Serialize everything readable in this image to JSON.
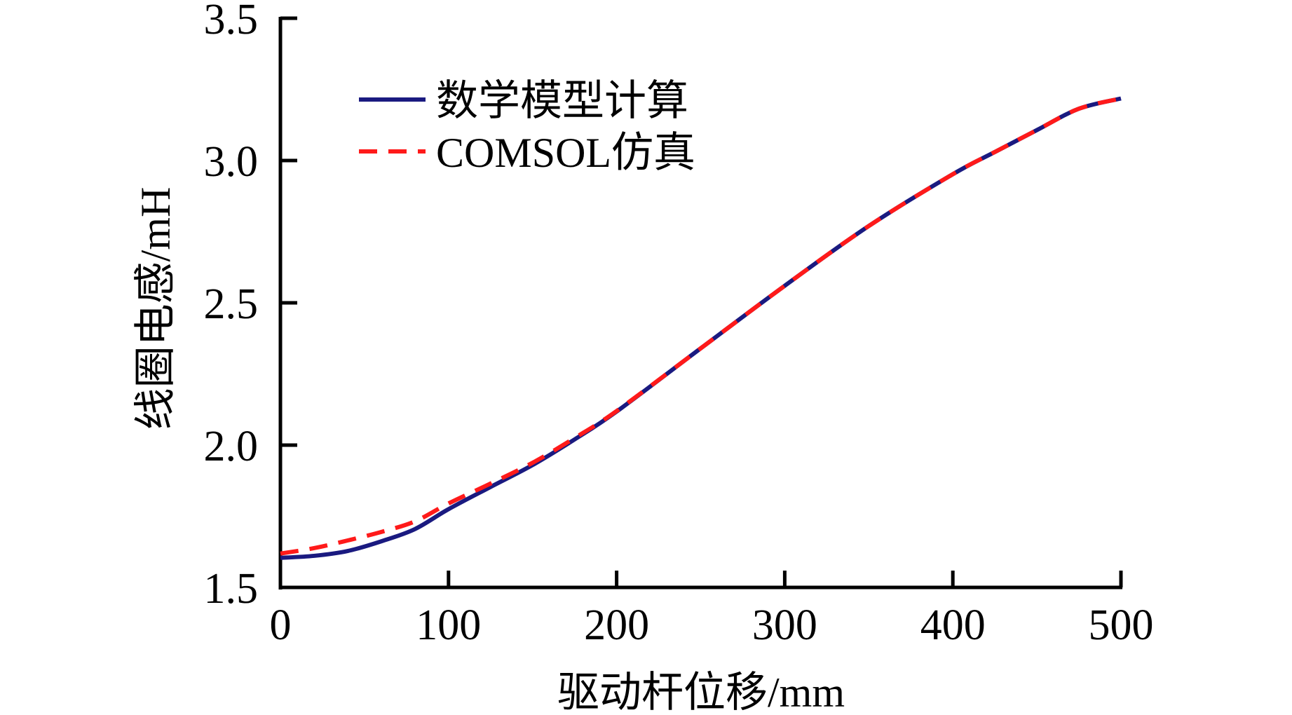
{
  "chart_data": {
    "type": "line",
    "title": "",
    "xlabel": "驱动杆位移/mm",
    "ylabel": "线圈电感/mH",
    "xlim": [
      0,
      500
    ],
    "ylim": [
      1.5,
      3.5
    ],
    "xticks": [
      0,
      100,
      200,
      300,
      400,
      500
    ],
    "xtick_labels": [
      "0",
      "100",
      "200",
      "300",
      "400",
      "500"
    ],
    "yticks": [
      1.5,
      2.0,
      2.5,
      3.0,
      3.5
    ],
    "ytick_labels": [
      "1.5",
      "2.0",
      "2.5",
      "3.0",
      "3.5"
    ],
    "grid": false,
    "legend_position": "top-left",
    "series": [
      {
        "name": "数学模型计算",
        "color": "#1a1a80",
        "style": "solid",
        "x": [
          0,
          20,
          40,
          60,
          80,
          100,
          125,
          150,
          175,
          200,
          250,
          300,
          350,
          400,
          425,
          450,
          475,
          500
        ],
        "y": [
          1.604,
          1.611,
          1.628,
          1.662,
          1.705,
          1.775,
          1.853,
          1.93,
          2.02,
          2.118,
          2.34,
          2.56,
          2.77,
          2.952,
          3.03,
          3.107,
          3.182,
          3.218
        ]
      },
      {
        "name": "COMSOL仿真",
        "color": "#ff1a1a",
        "style": "dashed",
        "x": [
          0,
          20,
          40,
          60,
          80,
          100,
          125,
          150,
          175,
          200,
          250,
          300,
          350,
          400,
          425,
          450,
          475,
          500
        ],
        "y": [
          1.619,
          1.638,
          1.665,
          1.695,
          1.732,
          1.795,
          1.865,
          1.938,
          2.025,
          2.12,
          2.34,
          2.56,
          2.77,
          2.952,
          3.03,
          3.107,
          3.182,
          3.218
        ]
      }
    ]
  }
}
